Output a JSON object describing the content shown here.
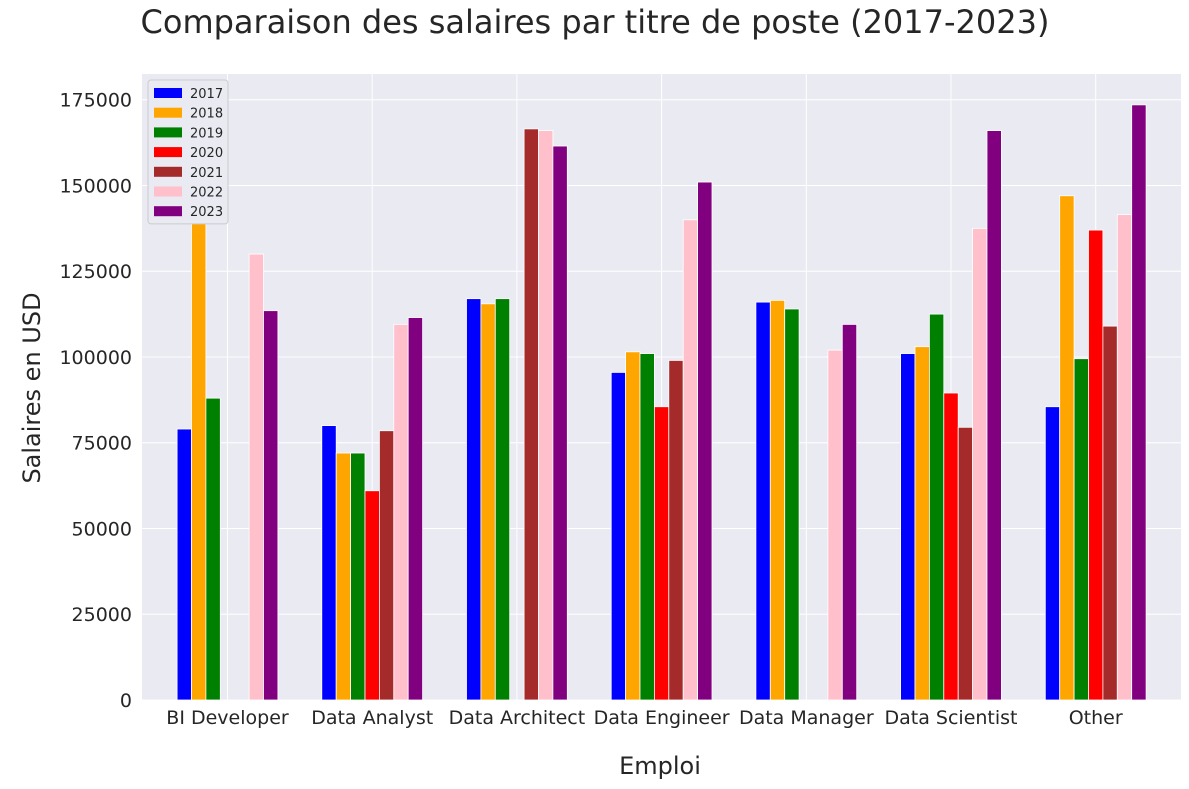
{
  "chart_data": {
    "type": "bar",
    "title": "Comparaison des salaires par titre de poste (2017-2023)",
    "xlabel": "Emploi",
    "ylabel": "Salaires en USD",
    "ylim": [
      0,
      182500
    ],
    "yticks": [
      0,
      25000,
      50000,
      75000,
      100000,
      125000,
      150000,
      175000
    ],
    "grid": true,
    "legend_position": "top-left",
    "categories": [
      "BI Developer",
      "Data Analyst",
      "Data Architect",
      "Data Engineer",
      "Data Manager",
      "Data Scientist",
      "Other"
    ],
    "series": [
      {
        "name": "2017",
        "color": "#0000ff",
        "values": [
          79000,
          80000,
          117000,
          95500,
          116000,
          101000,
          85500
        ]
      },
      {
        "name": "2018",
        "color": "#ffa500",
        "values": [
          170000,
          72000,
          115500,
          101500,
          116500,
          103000,
          147000
        ]
      },
      {
        "name": "2019",
        "color": "#008000",
        "values": [
          88000,
          72000,
          117000,
          101000,
          114000,
          112500,
          99500
        ]
      },
      {
        "name": "2020",
        "color": "#ff0000",
        "values": [
          null,
          61000,
          null,
          85500,
          null,
          89500,
          137000
        ]
      },
      {
        "name": "2021",
        "color": "#a52a2a",
        "values": [
          null,
          78500,
          166500,
          99000,
          null,
          79500,
          109000
        ]
      },
      {
        "name": "2022",
        "color": "#ffc0cb",
        "values": [
          130000,
          109500,
          166000,
          140000,
          102000,
          137500,
          141500
        ]
      },
      {
        "name": "2023",
        "color": "#800080",
        "values": [
          113500,
          111500,
          161500,
          151000,
          109500,
          166000,
          173500
        ]
      }
    ]
  },
  "style": {
    "plot_background": "#eaeaf2",
    "grid_color": "#ffffff",
    "text_color": "#262626"
  }
}
